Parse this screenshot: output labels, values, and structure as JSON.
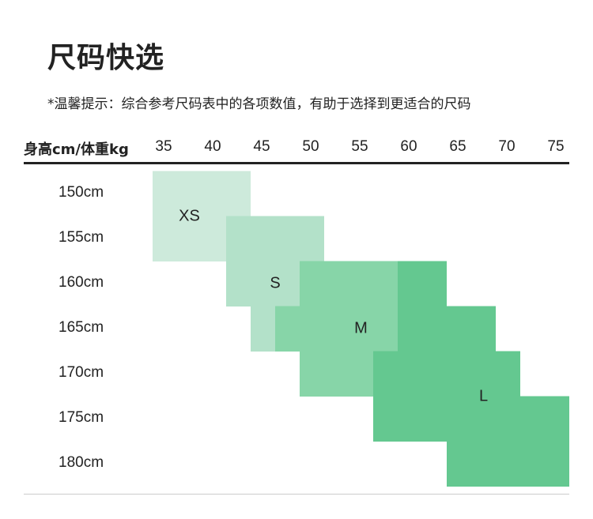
{
  "title": "尺码快选",
  "tip": "*温馨提示：综合参考尺码表中的各项数值，有助于选择到更适合的尺码",
  "chart_data": {
    "type": "heatmap",
    "header_label": "身高cm/体重kg",
    "x_ticks": [
      "35",
      "40",
      "45",
      "50",
      "55",
      "60",
      "65",
      "70",
      "75"
    ],
    "y_ticks": [
      "150cm",
      "155cm",
      "160cm",
      "165cm",
      "170cm",
      "175cm",
      "180cm"
    ],
    "sizes": [
      {
        "name": "XS",
        "color": "#cdeadb",
        "label_at": [
          37.5,
          152.5
        ],
        "cells": [
          {
            "height": 150,
            "weight": [
              33.75,
              43.75
            ]
          },
          {
            "height": 155,
            "weight": [
              33.75,
              43.75
            ]
          }
        ]
      },
      {
        "name": "S",
        "color": "#b3e1c9",
        "label_at": [
          46.25,
          160
        ],
        "cells": [
          {
            "height": 155,
            "weight": [
              41.25,
              51.25
            ]
          },
          {
            "height": 160,
            "weight": [
              41.25,
              51.25
            ]
          },
          {
            "height": 165,
            "weight": [
              43.75,
              51.25
            ]
          }
        ]
      },
      {
        "name": "M",
        "color": "#87d5a8",
        "label_at": [
          55,
          165
        ],
        "cells": [
          {
            "height": 160,
            "weight": [
              48.75,
              58.75
            ]
          },
          {
            "height": 165,
            "weight": [
              46.25,
              58.75
            ]
          },
          {
            "height": 170,
            "weight": [
              48.75,
              58.75
            ]
          }
        ]
      },
      {
        "name": "L",
        "color": "#64c890",
        "label_at": [
          67.5,
          172.5
        ],
        "cells": [
          {
            "height": 160,
            "weight": [
              58.75,
              63.75
            ]
          },
          {
            "height": 165,
            "weight": [
              58.75,
              68.75
            ]
          },
          {
            "height": 170,
            "weight": [
              56.25,
              71.25
            ]
          },
          {
            "height": 175,
            "weight": [
              56.25,
              76.25
            ]
          },
          {
            "height": 180,
            "weight": [
              63.75,
              76.25
            ]
          }
        ]
      }
    ]
  }
}
